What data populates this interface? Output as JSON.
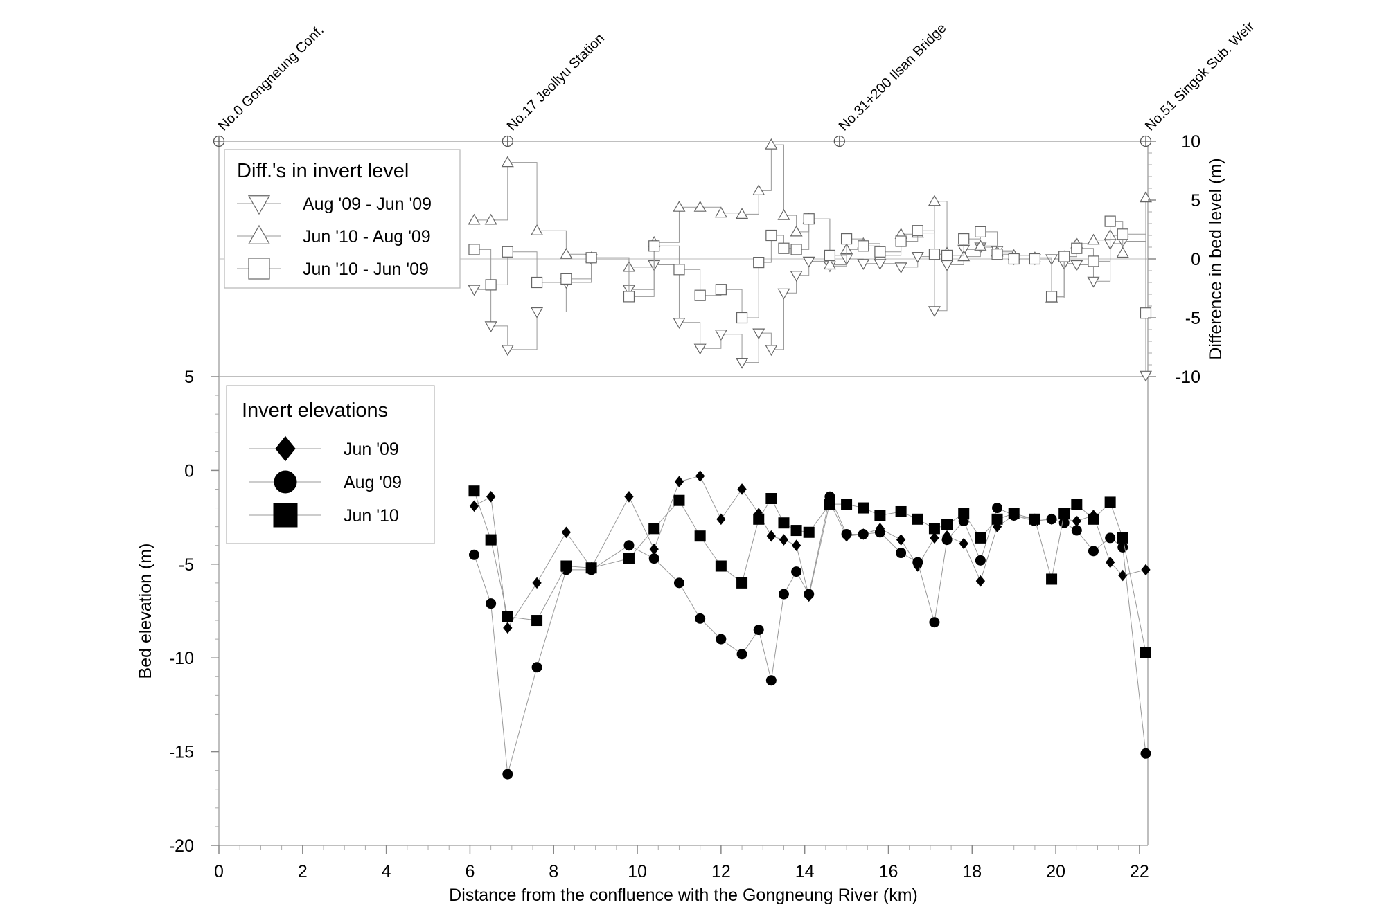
{
  "chart_data": {
    "type": "scatter",
    "xlabel": "Distance from the confluence with the Gongneung River (km)",
    "x_ticks": [
      "0",
      "2",
      "4",
      "6",
      "8",
      "10",
      "12",
      "14",
      "16",
      "18",
      "20",
      "22"
    ],
    "xlim": [
      0,
      22.2
    ],
    "stations": [
      {
        "x": 0,
        "label": "No.0 Gongneung Conf."
      },
      {
        "x": 6.9,
        "label": "No.17 Jeollyu Station"
      },
      {
        "x": 14.83,
        "label": "No.31+200 Ilsan Bridge"
      },
      {
        "x": 22.15,
        "label": "No.51 Singok Sub. Weir"
      }
    ],
    "panels": {
      "diff": {
        "ylabel": "Difference in bed level (m)",
        "ylim": [
          -10,
          10
        ],
        "y_ticks": [
          "10",
          "5",
          "0",
          "-5",
          "-10"
        ],
        "legend_title": "Diff.'s in invert level",
        "series": [
          {
            "name": "Aug '09 - Jun '09",
            "marker": "triangle-down",
            "x": [
              6.1,
              6.5,
              6.9,
              7.6,
              8.3,
              8.9,
              9.8,
              10.4,
              11.0,
              11.5,
              12.0,
              12.5,
              12.9,
              13.2,
              13.5,
              13.8,
              14.1,
              14.6,
              15.0,
              15.4,
              15.8,
              16.3,
              16.7,
              17.1,
              17.4,
              17.8,
              18.2,
              18.6,
              19.0,
              19.5,
              19.9,
              20.2,
              20.5,
              20.9,
              21.3,
              21.6,
              22.15
            ],
            "y": [
              -2.6,
              -5.7,
              -7.7,
              -4.5,
              -2.0,
              0.0,
              -2.6,
              -0.5,
              -5.4,
              -7.6,
              -6.4,
              -8.8,
              -6.3,
              -7.7,
              -2.9,
              -1.4,
              -0.2,
              -0.6,
              0.0,
              -0.4,
              -0.4,
              -0.7,
              0.2,
              -4.4,
              -0.5,
              0.8,
              1.0,
              0.7,
              0.0,
              0.0,
              0.0,
              -0.4,
              -0.5,
              -1.9,
              1.3,
              1.5,
              -9.9
            ]
          },
          {
            "name": "Jun '10 - Aug '09",
            "marker": "triangle-up",
            "x": [
              6.1,
              6.5,
              6.9,
              7.6,
              8.3,
              8.9,
              9.8,
              10.4,
              11.0,
              11.5,
              12.0,
              12.5,
              12.9,
              13.2,
              13.5,
              13.8,
              14.1,
              14.6,
              15.0,
              15.4,
              15.8,
              16.3,
              16.7,
              17.1,
              17.4,
              17.8,
              18.2,
              18.6,
              19.0,
              19.5,
              19.9,
              20.2,
              20.5,
              20.9,
              21.3,
              21.6,
              22.15
            ],
            "y": [
              3.3,
              3.3,
              8.2,
              2.4,
              0.4,
              0.1,
              -0.7,
              1.4,
              4.4,
              4.4,
              3.9,
              3.8,
              5.8,
              9.7,
              3.7,
              2.3,
              3.4,
              -0.5,
              0.8,
              1.3,
              0.3,
              2.1,
              2.2,
              4.9,
              0.5,
              0.2,
              1.1,
              0.6,
              0.3,
              0.1,
              -3.3,
              0.2,
              1.3,
              1.6,
              2.0,
              0.5,
              5.2
            ]
          },
          {
            "name": "Jun '10 - Jun '09",
            "marker": "square",
            "x": [
              6.1,
              6.5,
              6.9,
              7.6,
              8.3,
              8.9,
              9.8,
              10.4,
              11.0,
              11.5,
              12.0,
              12.5,
              12.9,
              13.2,
              13.5,
              13.8,
              14.1,
              14.6,
              15.0,
              15.4,
              15.8,
              16.3,
              16.7,
              17.1,
              17.4,
              17.8,
              18.2,
              18.6,
              19.0,
              19.5,
              19.9,
              20.2,
              20.5,
              20.9,
              21.3,
              21.6,
              22.15
            ],
            "y": [
              0.8,
              -2.2,
              0.6,
              -2.0,
              -1.7,
              0.1,
              -3.2,
              1.1,
              -0.9,
              -3.1,
              -2.6,
              -5.0,
              -0.3,
              2.0,
              0.9,
              0.8,
              3.4,
              0.3,
              1.7,
              1.1,
              0.6,
              1.5,
              2.4,
              0.4,
              0.3,
              1.7,
              2.3,
              0.4,
              0.0,
              0.0,
              -3.2,
              0.2,
              0.9,
              -0.2,
              3.2,
              2.1,
              -4.6
            ]
          }
        ]
      },
      "bed": {
        "ylabel": "Bed elevation (m)",
        "ylim": [
          -20,
          5
        ],
        "y_ticks": [
          "5",
          "0",
          "-5",
          "-10",
          "-15",
          "-20"
        ],
        "legend_title": "Invert elevations",
        "series": [
          {
            "name": "Jun '09",
            "marker": "diamond",
            "x": [
              6.1,
              6.5,
              6.9,
              7.6,
              8.3,
              8.9,
              9.8,
              10.4,
              11.0,
              11.5,
              12.0,
              12.5,
              12.9,
              13.2,
              13.5,
              13.8,
              14.1,
              14.6,
              15.0,
              15.4,
              15.8,
              16.3,
              16.7,
              17.1,
              17.4,
              17.8,
              18.2,
              18.6,
              19.0,
              19.5,
              19.9,
              20.2,
              20.5,
              20.9,
              21.3,
              21.6,
              22.15
            ],
            "y": [
              -1.9,
              -1.4,
              -8.4,
              -6.0,
              -3.3,
              -5.2,
              -1.4,
              -4.2,
              -0.6,
              -0.3,
              -2.6,
              -1.0,
              -2.3,
              -3.5,
              -3.7,
              -4.0,
              -6.7,
              -1.7,
              -3.5,
              -3.4,
              -3.1,
              -3.7,
              -5.1,
              -3.6,
              -3.5,
              -3.9,
              -5.9,
              -3.0,
              -2.4,
              -2.6,
              -2.6,
              -2.6,
              -2.7,
              -2.4,
              -4.9,
              -5.6,
              -5.3
            ]
          },
          {
            "name": "Aug '09",
            "marker": "circle",
            "x": [
              6.1,
              6.5,
              6.9,
              7.6,
              8.3,
              8.9,
              9.8,
              10.4,
              11.0,
              11.5,
              12.0,
              12.5,
              12.9,
              13.2,
              13.5,
              13.8,
              14.1,
              14.6,
              15.0,
              15.4,
              15.8,
              16.3,
              16.7,
              17.1,
              17.4,
              17.8,
              18.2,
              18.6,
              19.0,
              19.5,
              19.9,
              20.2,
              20.5,
              20.9,
              21.3,
              21.6,
              22.15
            ],
            "y": [
              -4.5,
              -7.1,
              -16.2,
              -10.5,
              -5.3,
              -5.3,
              -4.0,
              -4.7,
              -6.0,
              -7.9,
              -9.0,
              -9.8,
              -8.5,
              -11.2,
              -6.6,
              -5.4,
              -6.6,
              -1.4,
              -3.4,
              -3.4,
              -3.3,
              -4.4,
              -4.9,
              -8.1,
              -3.7,
              -2.7,
              -4.8,
              -2.0,
              -2.4,
              -2.7,
              -2.6,
              -2.8,
              -3.2,
              -4.3,
              -3.6,
              -4.1,
              -15.1
            ]
          },
          {
            "name": "Jun '10",
            "marker": "square",
            "x": [
              6.1,
              6.5,
              6.9,
              7.6,
              8.3,
              8.9,
              9.8,
              10.4,
              11.0,
              11.5,
              12.0,
              12.5,
              12.9,
              13.2,
              13.5,
              13.8,
              14.1,
              14.6,
              15.0,
              15.4,
              15.8,
              16.3,
              16.7,
              17.1,
              17.4,
              17.8,
              18.2,
              18.6,
              19.0,
              19.5,
              19.9,
              20.2,
              20.5,
              20.9,
              21.3,
              21.6,
              22.15
            ],
            "y": [
              -1.1,
              -3.7,
              -7.8,
              -8.0,
              -5.1,
              -5.2,
              -4.7,
              -3.1,
              -1.6,
              -3.5,
              -5.1,
              -6.0,
              -2.6,
              -1.5,
              -2.8,
              -3.2,
              -3.3,
              -1.8,
              -1.8,
              -2.0,
              -2.4,
              -2.2,
              -2.6,
              -3.1,
              -2.9,
              -2.3,
              -3.6,
              -2.6,
              -2.3,
              -2.6,
              -5.8,
              -2.3,
              -1.8,
              -2.6,
              -1.7,
              -3.6,
              -9.7
            ]
          }
        ]
      }
    }
  }
}
